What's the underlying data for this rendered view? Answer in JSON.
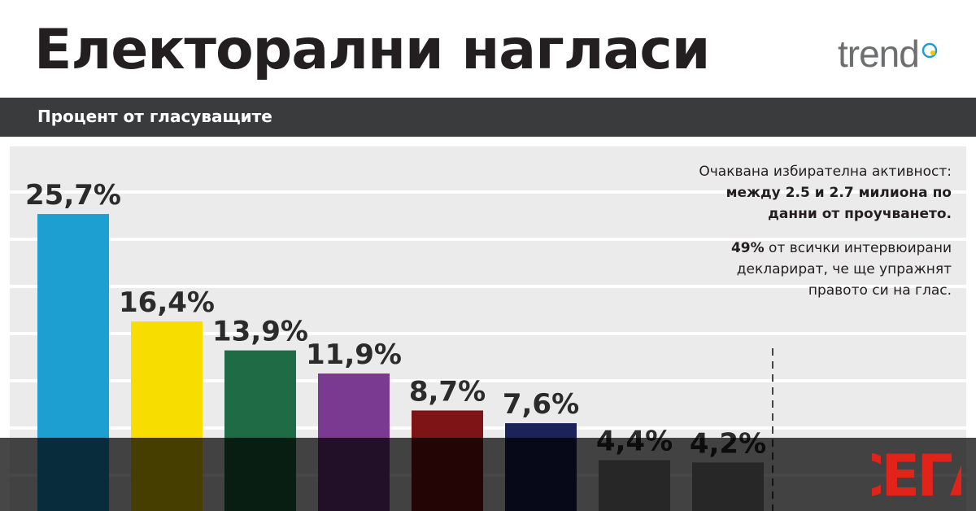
{
  "header": {
    "title": "Електорални нагласи",
    "brand": "trend"
  },
  "subheader": {
    "title": "Процент от гласуващите"
  },
  "notes": {
    "turnout_line1": "Очаквана избирателна активност:",
    "turnout_line2": "между 2.5 и 2.7 милиона по",
    "turnout_line3": "данни от проучването.",
    "declared_percent": "49%",
    "declared_line1": "от всички интервюирани",
    "declared_line2": "декларират, че ще упражнят",
    "declared_line3": "правото си на глас."
  },
  "overlay": {
    "brand": "СЕГА"
  },
  "chart_data": {
    "type": "bar",
    "title": "Електорални нагласи",
    "subtitle": "Процент от гласуващите",
    "ylim": [
      0,
      30
    ],
    "grid": true,
    "values": [
      25.7,
      16.4,
      13.9,
      11.9,
      8.7,
      7.6,
      4.4,
      4.2
    ],
    "labels": [
      "25,7%",
      "16,4%",
      "13,9%",
      "11,9%",
      "8,7%",
      "7,6%",
      "4,4%",
      "4,2%"
    ],
    "colors": [
      "#1e9fd2",
      "#f7dd00",
      "#1f6b46",
      "#7b3a92",
      "#7e1416",
      "#1b2359",
      "#8d8e90",
      "#8d8e90"
    ]
  }
}
